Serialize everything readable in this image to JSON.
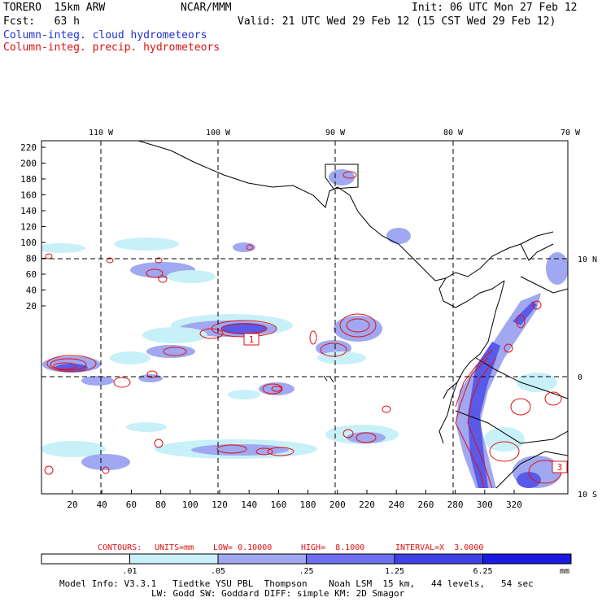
{
  "header": {
    "model": "TORERO  15km ARW",
    "org": "NCAR/MMM",
    "init": "Init: 06 UTC Mon 27 Feb 12",
    "fcst": "Fcst:   63 h",
    "valid": "Valid: 21 UTC Wed 29 Feb 12 (15 CST Wed 29 Feb 12)",
    "field1": "Column-integ. cloud hydrometeors",
    "field2": "Column-integ. precip. hydrometeors"
  },
  "colors": {
    "field1": "#1f2fd8",
    "field2": "#e01010",
    "cloud_light": "#c8f0f8",
    "cloud_mid": "#9fa8f0",
    "cloud_dark": "#5a5ae8",
    "cloud_darker": "#2a2ae0",
    "precip": "#e01010"
  },
  "map": {
    "lon_labels": [
      "110 W",
      "100 W",
      "90 W",
      "80 W",
      "70 W"
    ],
    "lat_labels": [
      "10 N",
      "0",
      "10 S"
    ],
    "y_ticks": [
      "220",
      "200",
      "180",
      "160",
      "140",
      "120",
      "100",
      "80",
      "60",
      "40",
      "20"
    ],
    "x_ticks": [
      "20",
      "40",
      "60",
      "80",
      "100",
      "120",
      "140",
      "160",
      "180",
      "200",
      "220",
      "240",
      "260",
      "280",
      "300",
      "320"
    ],
    "box_labels": [
      "1",
      "3"
    ]
  },
  "contour_info": {
    "contours": "CONTOURS:",
    "units": "UNITS=mm",
    "low": "LOW= 0.10000",
    "high": "HIGH=  8.1000",
    "interval": "INTERVAL=X  3.0000"
  },
  "colorbar": {
    "labels": [
      ".01",
      ".05",
      ".25",
      "1.25",
      "6.25"
    ],
    "unit": "mm",
    "fills": [
      "#ffffff",
      "#c8f0f8",
      "#9fa8f0",
      "#6e6ef0",
      "#4040e8",
      "#1a1ae0"
    ]
  },
  "footer": {
    "line1": "Model Info: V3.3.1   Tiedtke YSU PBL  Thompson    Noah LSM  15 km,   44 levels,   54 sec",
    "line2": "LW: Godd SW: Goddard DIFF: simple KM: 2D Smagor"
  }
}
